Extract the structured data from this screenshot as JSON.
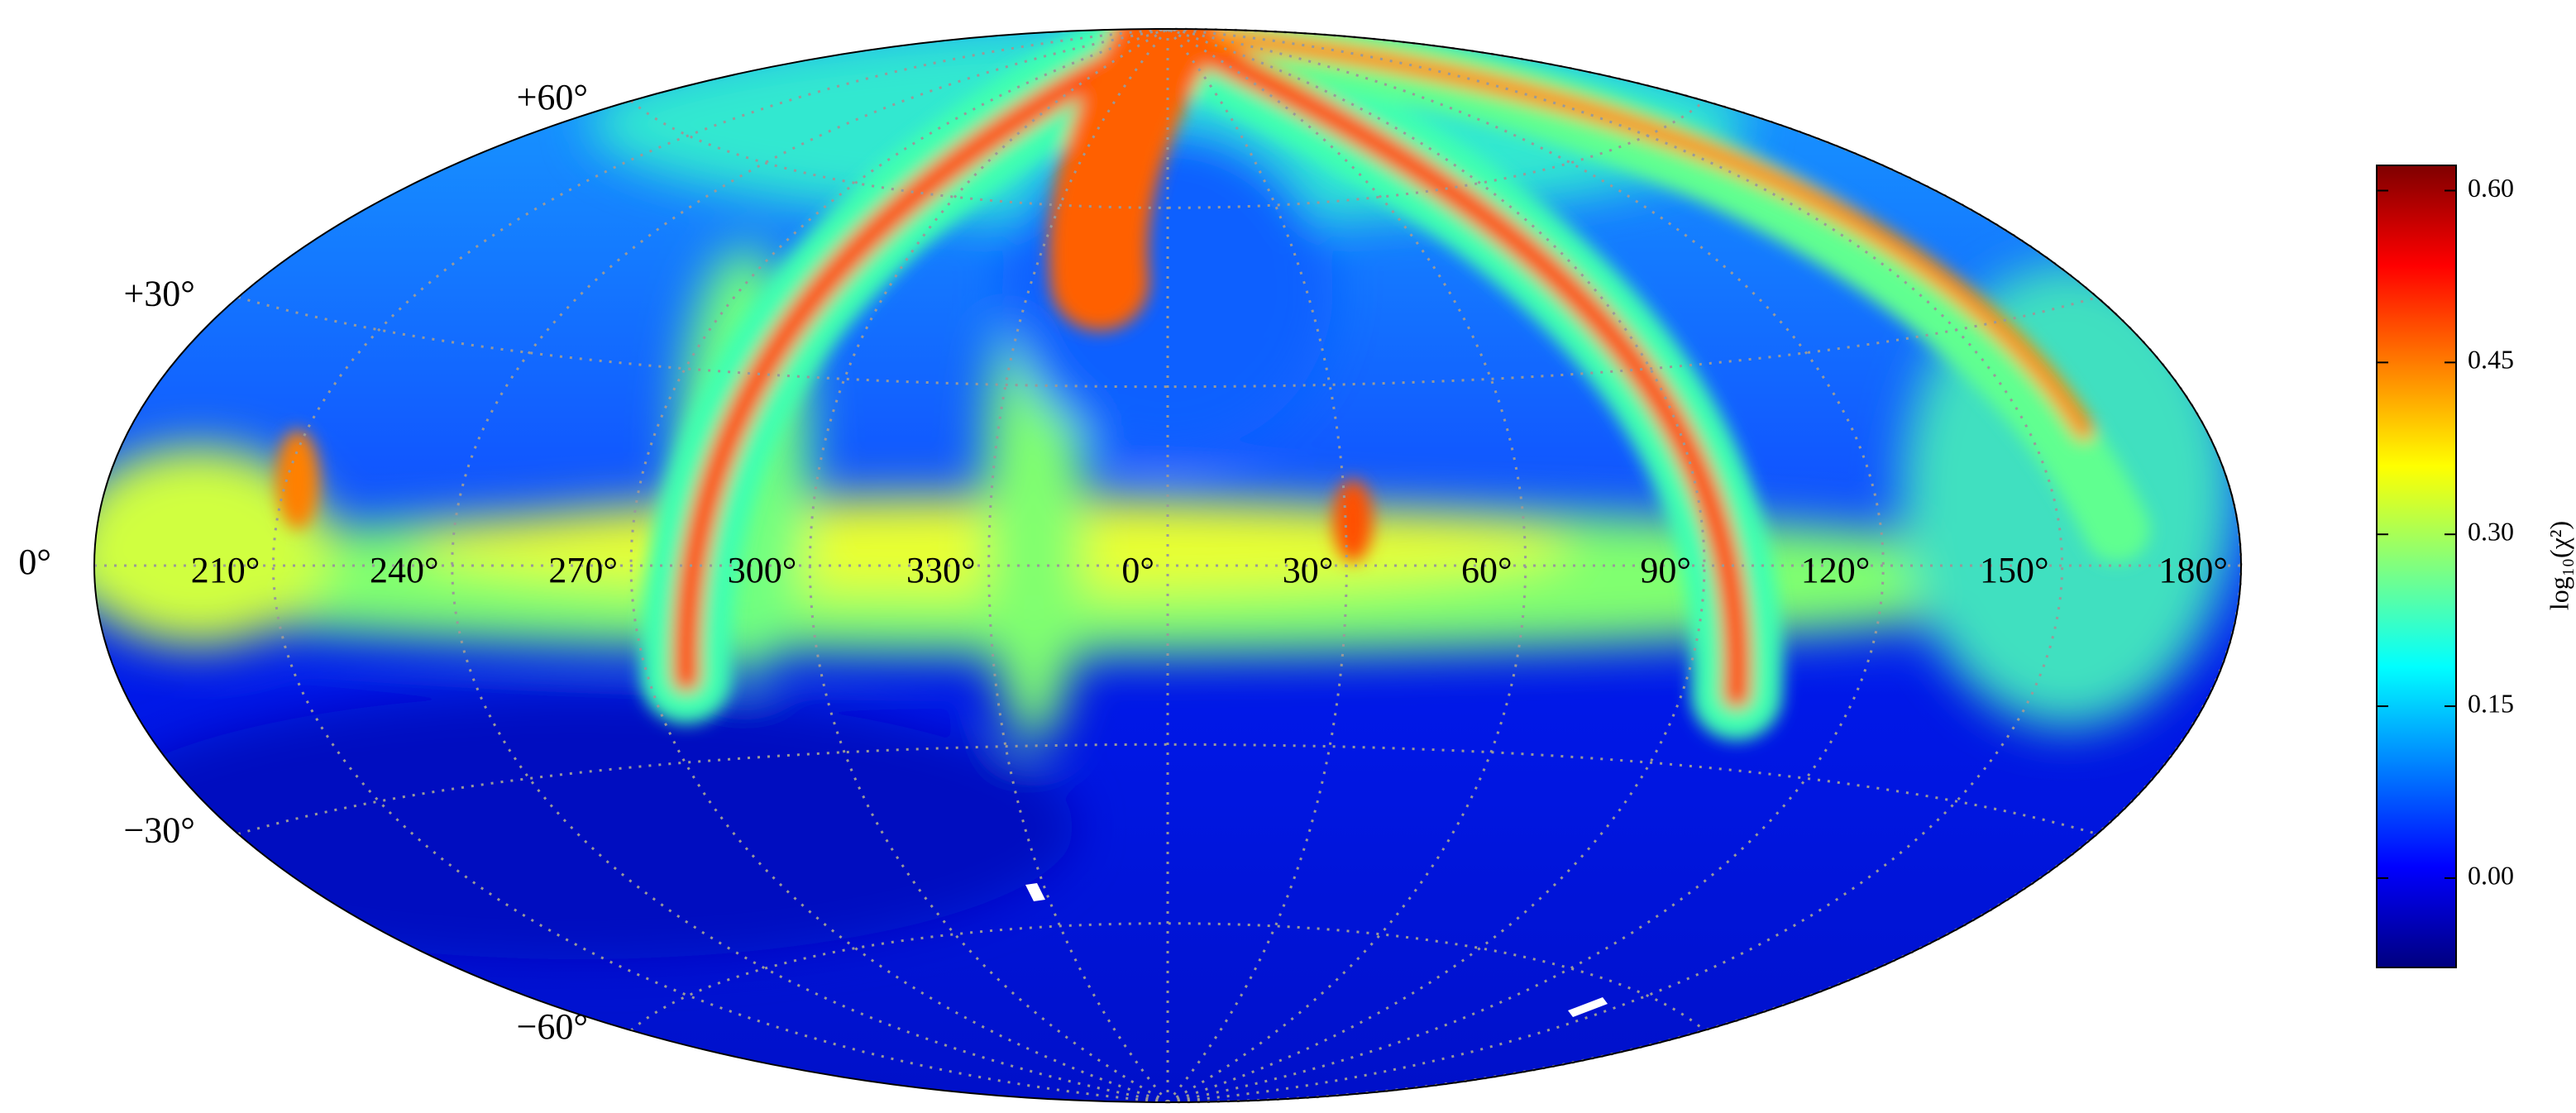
{
  "chart_data": {
    "type": "aitoff-map",
    "lon_ticks": [
      {
        "value": 210,
        "label": "210°"
      },
      {
        "value": 240,
        "label": "240°"
      },
      {
        "value": 270,
        "label": "270°"
      },
      {
        "value": 300,
        "label": "300°"
      },
      {
        "value": 330,
        "label": "330°"
      },
      {
        "value": 0,
        "label": "0°"
      },
      {
        "value": 30,
        "label": "30°"
      },
      {
        "value": 60,
        "label": "60°"
      },
      {
        "value": 90,
        "label": "90°"
      },
      {
        "value": 120,
        "label": "120°"
      },
      {
        "value": 150,
        "label": "150°"
      },
      {
        "value": 180,
        "label": "180°"
      }
    ],
    "lat_ticks": [
      {
        "value": 60,
        "label": "+60°"
      },
      {
        "value": 30,
        "label": "+30°"
      },
      {
        "value": 0,
        "label": "0°"
      },
      {
        "value": -30,
        "label": "−30°"
      },
      {
        "value": -60,
        "label": "−60°"
      }
    ],
    "colorbar": {
      "label": "log₁₀(χ²)",
      "lim": [
        -0.078,
        0.622
      ],
      "ticks": [
        {
          "value": 0,
          "label": "0.00"
        },
        {
          "value": 0.15,
          "label": "0.15"
        },
        {
          "value": 0.3,
          "label": "0.30"
        },
        {
          "value": 0.45,
          "label": "0.45"
        },
        {
          "value": 0.6,
          "label": "0.60"
        }
      ]
    },
    "grid": true
  }
}
